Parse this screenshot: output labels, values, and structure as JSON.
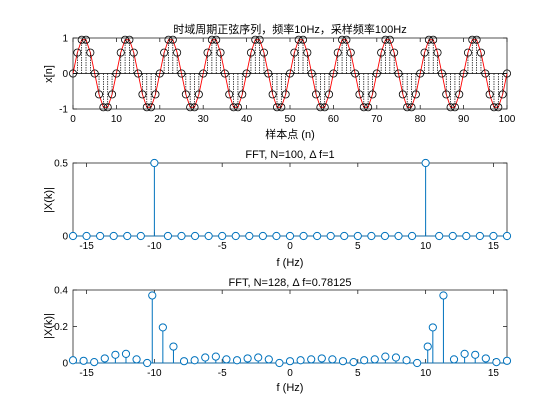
{
  "colors": {
    "background": "#ffffff",
    "axes": "#262626",
    "stem_blue": "#0072bd",
    "sine_red": "#ff0000",
    "stem_black": "#000000"
  },
  "chart_data": [
    {
      "type": "stem",
      "title": "时域周期正弦序列，频率10Hz，采样频率100Hz",
      "xlabel": "样本点 (n)",
      "ylabel": "x[n]",
      "xlim": [
        0,
        100
      ],
      "ylim": [
        -1,
        1
      ],
      "xticks": [
        0,
        10,
        20,
        30,
        40,
        50,
        60,
        70,
        80,
        90,
        100
      ],
      "yticks": [
        -1,
        0,
        1
      ],
      "signal": {
        "formula": "sin(2*pi*10*n/100)",
        "n": [
          0,
          100
        ],
        "samples": 101
      },
      "series": [
        {
          "kind": "continuous-line",
          "color": "#ff0000"
        },
        {
          "kind": "stem-samples",
          "color": "#000000"
        }
      ]
    },
    {
      "type": "stem",
      "title": "FFT, N=100, Δ f=1",
      "xlabel": "f (Hz)",
      "ylabel": "|X(k)|",
      "xlim": [
        -16,
        16
      ],
      "ylim": [
        0,
        0.5
      ],
      "xticks": [
        -15,
        -10,
        -5,
        0,
        5,
        10,
        15
      ],
      "yticks": [
        0,
        0.5
      ],
      "x": [
        -16,
        -15,
        -14,
        -13,
        -12,
        -11,
        -10,
        -9,
        -8,
        -7,
        -6,
        -5,
        -4,
        -3,
        -2,
        -1,
        0,
        1,
        2,
        3,
        4,
        5,
        6,
        7,
        8,
        9,
        10,
        11,
        12,
        13,
        14,
        15,
        16
      ],
      "values": [
        0,
        0,
        0,
        0,
        0,
        0,
        0.5,
        0,
        0,
        0,
        0,
        0,
        0,
        0,
        0,
        0,
        0,
        0,
        0,
        0,
        0,
        0,
        0,
        0,
        0,
        0,
        0.5,
        0,
        0,
        0,
        0,
        0,
        0
      ]
    },
    {
      "type": "stem",
      "title": "FFT, N=128, Δ f=0.78125",
      "xlabel": "f (Hz)",
      "ylabel": "|X(k)|",
      "xlim": [
        -16,
        16
      ],
      "ylim": [
        0,
        0.4
      ],
      "xticks": [
        -15,
        -10,
        -5,
        0,
        5,
        10,
        15
      ],
      "yticks": [
        0,
        0.2,
        0.4
      ],
      "x": [
        -16,
        -15.21875,
        -14.4375,
        -13.65625,
        -12.875,
        -12.09375,
        -11.3125,
        -10.53125,
        -10.15625,
        -9.375,
        -8.59375,
        -7.8125,
        -7.03125,
        -6.25,
        -5.46875,
        -4.6875,
        -3.90625,
        -3.125,
        -2.34375,
        -1.5625,
        -0.78125,
        0,
        0.78125,
        1.5625,
        2.34375,
        3.125,
        3.90625,
        4.6875,
        5.46875,
        6.25,
        7.03125,
        7.8125,
        8.59375,
        9.375,
        10.15625,
        10.53125,
        11.3125,
        12.09375,
        12.875,
        13.65625,
        14.4375,
        15.21875,
        16
      ],
      "values": [
        0.015,
        0.012,
        0.005,
        0.025,
        0.045,
        0.05,
        0.02,
        0.0,
        0.37,
        0.195,
        0.09,
        0.01,
        0.015,
        0.03,
        0.035,
        0.02,
        0.015,
        0.025,
        0.03,
        0.02,
        0.0,
        0.01,
        0.015,
        0.02,
        0.025,
        0.02,
        0.01,
        0.005,
        0.015,
        0.02,
        0.035,
        0.03,
        0.015,
        0.0,
        0.09,
        0.195,
        0.37,
        0.02,
        0.05,
        0.045,
        0.025,
        0.005,
        0.012
      ]
    }
  ]
}
